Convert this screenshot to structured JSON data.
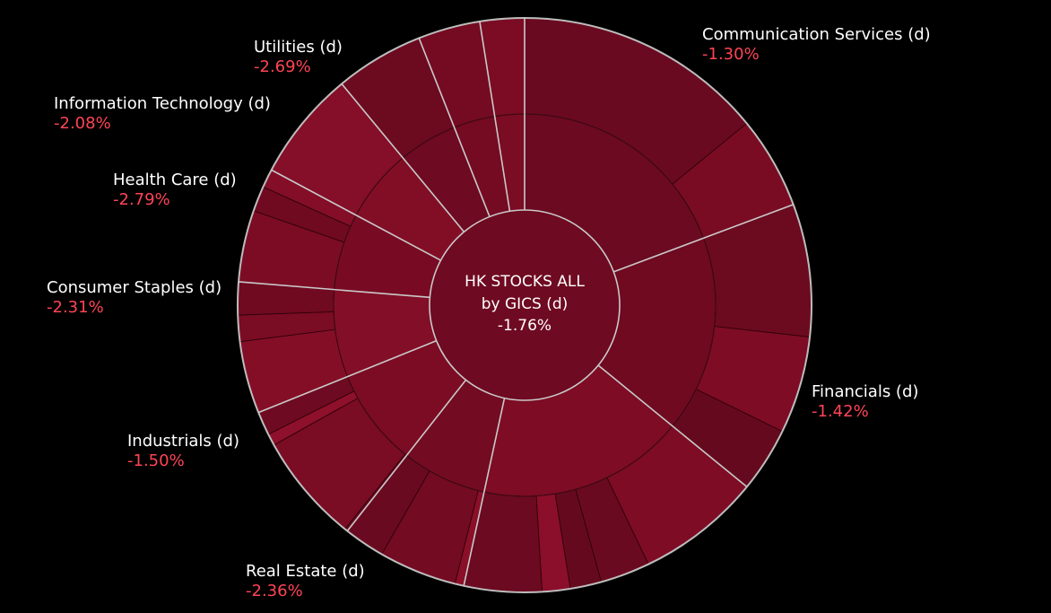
{
  "chart_data": {
    "type": "sunburst",
    "center": {
      "line1": "HK STOCKS ALL",
      "line2": "by GICS (d)",
      "change": "-1.76%"
    },
    "sectors": [
      {
        "name": "Communication Services (d)",
        "change": "-1.30%",
        "change_pct": -1.3,
        "weight": 19.3,
        "color": "#6b0a20"
      },
      {
        "name": "Financials (d)",
        "change": "-1.42%",
        "change_pct": -1.42,
        "weight": 16.6,
        "color": "#6f0a21"
      },
      {
        "name": "Real Estate (d)",
        "change": "-2.36%",
        "change_pct": -2.36,
        "weight": 17.5,
        "color": "#7d0c24"
      },
      {
        "name": "Industrials (d)",
        "change": "-1.50%",
        "change_pct": -1.5,
        "weight": 7.2,
        "color": "#730b22"
      },
      {
        "name": "Consumer Staples (d)",
        "change": "-2.31%",
        "change_pct": -2.31,
        "weight": 8.3,
        "color": "#7b0c24"
      },
      {
        "name": "Health Care (d)",
        "change": "-2.79%",
        "change_pct": -2.79,
        "weight": 7.4,
        "color": "#830e27"
      },
      {
        "name": "Information Technology (d)",
        "change": "-2.08%",
        "change_pct": -2.08,
        "weight": 6.5,
        "color": "#780b23"
      },
      {
        "name": "Utilities (d)",
        "change": "-2.69%",
        "change_pct": -2.69,
        "weight": 6.2,
        "color": "#820e26"
      },
      {
        "name": "",
        "change": "",
        "change_pct": null,
        "weight": 5.0,
        "color": "#6e0a21"
      },
      {
        "name": "",
        "change": "",
        "change_pct": null,
        "weight": 3.5,
        "color": "#740b22"
      },
      {
        "name": "",
        "change": "",
        "change_pct": null,
        "weight": 2.5,
        "color": "#7a0c23"
      }
    ],
    "children": [
      [
        {
          "w": 73,
          "color": "#6a0a20"
        },
        {
          "w": 27,
          "color": "#790c23"
        }
      ],
      [
        {
          "w": 45,
          "color": "#6c0a20"
        },
        {
          "w": 33,
          "color": "#7e0c25"
        },
        {
          "w": 22,
          "color": "#650a1e"
        }
      ],
      [
        {
          "w": 40,
          "color": "#7e0c25"
        },
        {
          "w": 16,
          "color": "#6a0a20"
        },
        {
          "w": 10,
          "color": "#650a1e"
        },
        {
          "w": 9,
          "color": "#8b0f2a"
        },
        {
          "w": 25,
          "color": "#6b0a20"
        }
      ],
      [
        {
          "w": 7,
          "color": "#8a0f29"
        },
        {
          "w": 61,
          "color": "#730b22"
        },
        {
          "w": 32,
          "color": "#6a0a20"
        }
      ],
      [
        {
          "w": 2,
          "color": "#6b0a20"
        },
        {
          "w": 74,
          "color": "#7a0c24"
        },
        {
          "w": 8,
          "color": "#8e102b"
        },
        {
          "w": 16,
          "color": "#6e0a21"
        }
      ],
      [
        {
          "w": 55,
          "color": "#850e27"
        },
        {
          "w": 20,
          "color": "#7a0c24"
        },
        {
          "w": 25,
          "color": "#6f0a21"
        }
      ],
      [
        {
          "w": 62,
          "color": "#7c0c24"
        },
        {
          "w": 22,
          "color": "#6f0a21"
        },
        {
          "w": 16,
          "color": "#840e27"
        }
      ],
      [
        {
          "w": 100,
          "color": "#850e28"
        }
      ],
      [
        {
          "w": 100,
          "color": "#6c0a20"
        }
      ],
      [
        {
          "w": 100,
          "color": "#740b22"
        }
      ],
      [
        {
          "w": 100,
          "color": "#7b0c24"
        }
      ]
    ]
  }
}
